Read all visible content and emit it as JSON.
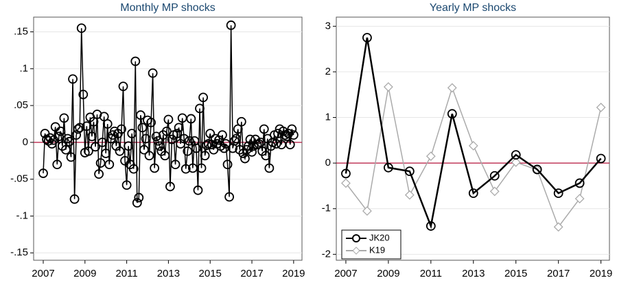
{
  "chart_data": [
    {
      "type": "line",
      "title": "Monthly MP shocks",
      "marker": "circle",
      "xlim": [
        2006.54,
        2019.4
      ],
      "ylim": [
        -0.16,
        0.17
      ],
      "xticks": [
        2007,
        2009,
        2011,
        2013,
        2015,
        2017,
        2019
      ],
      "yticks": [
        {
          "value": -0.15,
          "label": "-.15"
        },
        {
          "value": -0.1,
          "label": "-.1"
        },
        {
          "value": -0.05,
          "label": "-.05"
        },
        0,
        {
          "value": 0.05,
          "label": ".05"
        },
        {
          "value": 0.1,
          "label": ".1"
        },
        {
          "value": 0.15,
          "label": ".15"
        }
      ],
      "grid": true,
      "reference_line": {
        "value": 0,
        "color": "#b5123a"
      },
      "x": [
        2007.0,
        2007.083,
        2007.167,
        2007.25,
        2007.333,
        2007.417,
        2007.5,
        2007.583,
        2007.667,
        2007.75,
        2007.833,
        2007.917,
        2008.0,
        2008.083,
        2008.167,
        2008.25,
        2008.333,
        2008.417,
        2008.5,
        2008.583,
        2008.667,
        2008.75,
        2008.833,
        2008.917,
        2009.0,
        2009.083,
        2009.167,
        2009.25,
        2009.333,
        2009.417,
        2009.5,
        2009.583,
        2009.667,
        2009.75,
        2009.833,
        2009.917,
        2010.0,
        2010.083,
        2010.167,
        2010.25,
        2010.333,
        2010.417,
        2010.5,
        2010.583,
        2010.667,
        2010.75,
        2010.833,
        2010.917,
        2011.0,
        2011.083,
        2011.167,
        2011.25,
        2011.333,
        2011.417,
        2011.5,
        2011.583,
        2011.667,
        2011.75,
        2011.833,
        2011.917,
        2012.0,
        2012.083,
        2012.167,
        2012.25,
        2012.333,
        2012.417,
        2012.5,
        2012.583,
        2012.667,
        2012.75,
        2012.833,
        2012.917,
        2013.0,
        2013.083,
        2013.167,
        2013.25,
        2013.333,
        2013.417,
        2013.5,
        2013.583,
        2013.667,
        2013.75,
        2013.833,
        2013.917,
        2014.0,
        2014.083,
        2014.167,
        2014.25,
        2014.333,
        2014.417,
        2014.5,
        2014.583,
        2014.667,
        2014.75,
        2014.833,
        2014.917,
        2015.0,
        2015.083,
        2015.167,
        2015.25,
        2015.333,
        2015.417,
        2015.5,
        2015.583,
        2015.667,
        2015.75,
        2015.833,
        2015.917,
        2016.0,
        2016.083,
        2016.167,
        2016.25,
        2016.333,
        2016.417,
        2016.5,
        2016.583,
        2016.667,
        2016.75,
        2016.833,
        2016.917,
        2017.0,
        2017.083,
        2017.167,
        2017.25,
        2017.333,
        2017.417,
        2017.5,
        2017.583,
        2017.667,
        2017.75,
        2017.833,
        2017.917,
        2018.0,
        2018.083,
        2018.167,
        2018.25,
        2018.333,
        2018.417,
        2018.5,
        2018.583,
        2018.667,
        2018.75,
        2018.833,
        2018.917,
        2019.0
      ],
      "series": [
        {
          "color": "#000000",
          "values": [
            -0.042,
            0.012,
            0.004,
            0.002,
            0.006,
            -0.002,
            0.003,
            0.021,
            -0.03,
            0.008,
            0.015,
            -0.005,
            0.033,
            -0.01,
            0.005,
            0.001,
            -0.02,
            0.086,
            -0.077,
            0.01,
            0.018,
            0.02,
            0.155,
            0.065,
            -0.014,
            0.022,
            -0.012,
            0.034,
            0.008,
            0.028,
            -0.006,
            0.038,
            -0.043,
            -0.028,
            0.0,
            0.035,
            -0.015,
            0.025,
            -0.03,
            0.005,
            0.01,
            0.015,
            -0.005,
            0.012,
            -0.012,
            0.018,
            0.076,
            -0.025,
            -0.058,
            -0.005,
            -0.03,
            0.012,
            -0.036,
            0.11,
            -0.082,
            -0.075,
            0.037,
            0.02,
            -0.01,
            0.005,
            0.03,
            -0.018,
            0.027,
            0.094,
            -0.035,
            0.008,
            0.002,
            -0.005,
            -0.012,
            0.01,
            -0.018,
            0.015,
            0.031,
            -0.06,
            0.004,
            0.01,
            -0.03,
            0.012,
            0.02,
            -0.002,
            0.033,
            0.005,
            -0.036,
            -0.012,
            0.002,
            0.032,
            -0.035,
            0.002,
            -0.008,
            -0.065,
            0.046,
            -0.035,
            0.061,
            -0.018,
            -0.004,
            -0.002,
            0.012,
            -0.003,
            -0.01,
            0.005,
            -0.002,
            0.003,
            -0.005,
            0.01,
            -0.008,
            -0.002,
            -0.03,
            -0.074,
            0.159,
            -0.008,
            0.002,
            0.005,
            0.018,
            -0.01,
            0.028,
            -0.015,
            -0.022,
            -0.01,
            -0.005,
            0.004,
            -0.013,
            -0.005,
            0.004,
            -0.003,
            -0.002,
            0.0,
            -0.012,
            0.018,
            -0.018,
            0.005,
            -0.035,
            -0.005,
            0.0,
            0.01,
            -0.002,
            0.012,
            0.018,
            -0.003,
            0.015,
            0.01,
            0.008,
            0.012,
            -0.003,
            0.018,
            0.01
          ]
        }
      ]
    },
    {
      "type": "line",
      "title": "Yearly MP shocks",
      "xlim": [
        2006.55,
        2019.4
      ],
      "ylim": [
        -2.13,
        3.2
      ],
      "xticks": [
        2007,
        2009,
        2011,
        2013,
        2015,
        2017,
        2019
      ],
      "yticks": [
        -2,
        -1,
        0,
        1,
        2,
        3
      ],
      "grid": true,
      "reference_line": {
        "value": 0,
        "color": "#b5123a"
      },
      "legend": "bottom-left",
      "x": [
        2007,
        2008,
        2009,
        2010,
        2011,
        2012,
        2013,
        2014,
        2015,
        2016,
        2017,
        2018,
        2019
      ],
      "series": [
        {
          "name": "K19",
          "color": "#aaaaaa",
          "marker": "diamond",
          "values": [
            -0.44,
            -1.05,
            1.67,
            -0.7,
            0.15,
            1.65,
            0.38,
            -0.62,
            0.02,
            -0.15,
            -1.4,
            -0.78,
            1.22
          ]
        },
        {
          "name": "JK20",
          "color": "#000000",
          "marker": "circle",
          "values": [
            -0.23,
            2.75,
            -0.1,
            -0.18,
            -1.38,
            1.08,
            -0.66,
            -0.28,
            0.18,
            -0.14,
            -0.66,
            -0.44,
            0.1
          ]
        }
      ]
    }
  ]
}
